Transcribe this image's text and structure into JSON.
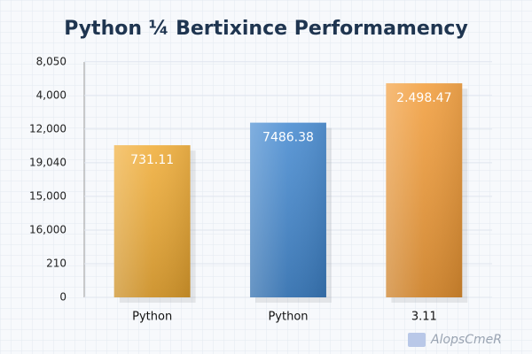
{
  "chart_data": {
    "type": "bar",
    "title": "Python ¼ Bertixince Performamency",
    "categories": [
      "Python",
      "Python",
      "3.11"
    ],
    "values": [
      4.52,
      5.19,
      6.36
    ],
    "annotations": [
      "731.11",
      "7486.38",
      "2.498.47"
    ],
    "colors": [
      "#f0aa30",
      "#3f86cf",
      "#f29a34"
    ],
    "ylim": [
      0,
      7.1
    ],
    "yticks": [
      0,
      {
        "value": 1,
        "label": "210"
      },
      {
        "value": 2,
        "label": "16,000"
      },
      {
        "value": 3,
        "label": "15,000"
      },
      {
        "value": 4,
        "label": "19,040"
      },
      {
        "value": 5,
        "label": "12,000"
      },
      {
        "value": 6,
        "label": "4,000"
      },
      {
        "value": 7,
        "label": "8,050"
      }
    ],
    "grid": true,
    "watermark": "AlopsCmeR"
  }
}
